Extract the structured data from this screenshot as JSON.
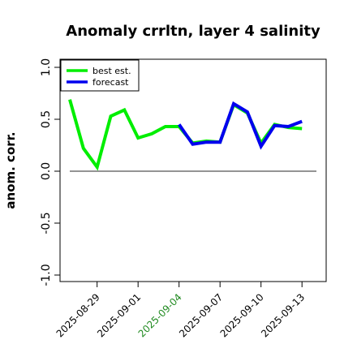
{
  "chart_data": {
    "type": "line",
    "title": "Anomaly crrltn, layer 4 salinity",
    "xlabel": "",
    "ylabel": "anom. corr.",
    "ylim": [
      -1.0,
      1.0
    ],
    "yticks": [
      "-1.0",
      "-0.5",
      "0.0",
      "0.5",
      "1.0"
    ],
    "ytick_values": [
      -1.0,
      -0.5,
      0.0,
      0.5,
      1.0
    ],
    "x_dates": [
      "2025-08-27",
      "2025-08-28",
      "2025-08-29",
      "2025-08-30",
      "2025-08-31",
      "2025-09-01",
      "2025-09-02",
      "2025-09-03",
      "2025-09-04",
      "2025-09-05",
      "2025-09-06",
      "2025-09-07",
      "2025-09-08",
      "2025-09-09",
      "2025-09-10",
      "2025-09-11",
      "2025-09-12",
      "2025-09-13"
    ],
    "xticks": [
      "2025-08-29",
      "2025-09-01",
      "2025-09-04",
      "2025-09-07",
      "2025-09-10",
      "2025-09-13"
    ],
    "xtick_colors": [
      "#000000",
      "#000000",
      "#228B22",
      "#000000",
      "#000000",
      "#000000"
    ],
    "xlim": [
      "2025-08-26",
      "2025-09-14"
    ],
    "reference_line": 0.0,
    "grid": false,
    "legend_position": "top-left",
    "series": [
      {
        "name": "best est.",
        "color": "#00ee00",
        "x": [
          "2025-08-27",
          "2025-08-28",
          "2025-08-29",
          "2025-08-30",
          "2025-08-31",
          "2025-09-01",
          "2025-09-02",
          "2025-09-03",
          "2025-09-04",
          "2025-09-05",
          "2025-09-06",
          "2025-09-07",
          "2025-09-08",
          "2025-09-09",
          "2025-09-10",
          "2025-09-11",
          "2025-09-12",
          "2025-09-13"
        ],
        "values": [
          0.69,
          0.22,
          0.04,
          0.53,
          0.59,
          0.32,
          0.36,
          0.43,
          0.43,
          0.27,
          0.29,
          0.28,
          0.64,
          0.56,
          0.27,
          0.45,
          0.42,
          0.41
        ]
      },
      {
        "name": "forecast",
        "color": "#0000ee",
        "x": [
          "2025-09-04",
          "2025-09-05",
          "2025-09-06",
          "2025-09-07",
          "2025-09-08",
          "2025-09-09",
          "2025-09-10",
          "2025-09-11",
          "2025-09-12",
          "2025-09-13"
        ],
        "values": [
          0.45,
          0.26,
          0.28,
          0.28,
          0.65,
          0.57,
          0.24,
          0.44,
          0.43,
          0.48
        ]
      }
    ]
  }
}
